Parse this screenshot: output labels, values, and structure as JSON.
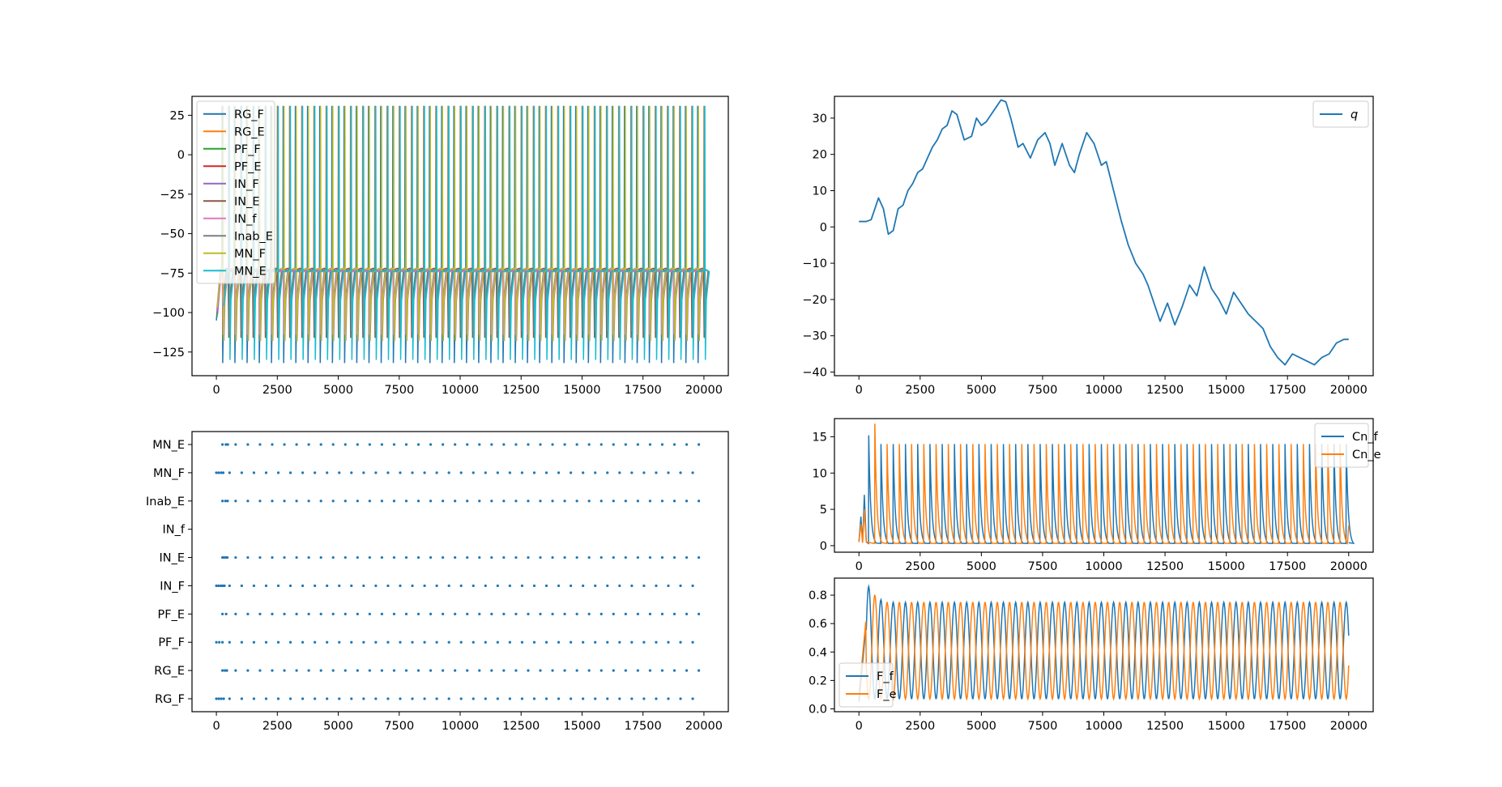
{
  "colors": {
    "tab10": [
      "#1f77b4",
      "#ff7f0e",
      "#2ca02c",
      "#d62728",
      "#9467bd",
      "#8c564b",
      "#e377c2",
      "#7f7f7f",
      "#bcbd22",
      "#17becf"
    ],
    "axes": "#000000",
    "legend_border": "#cccccc"
  },
  "chart_data": [
    {
      "id": "voltage",
      "type": "line",
      "xlim": [
        -1000,
        21000
      ],
      "ylim": [
        -140,
        37
      ],
      "xticks": [
        0,
        2500,
        5000,
        7500,
        10000,
        12500,
        15000,
        17500,
        20000
      ],
      "yticks": [
        25,
        0,
        -25,
        -50,
        -75,
        -100,
        -125
      ],
      "xtick_labels": [
        "0",
        "2500",
        "5000",
        "7500",
        "10000",
        "12500",
        "15000",
        "17500",
        "20000"
      ],
      "ytick_labels": [
        "25",
        "0",
        "−25",
        "−50",
        "−75",
        "−100",
        "−125"
      ],
      "legend_placement": "upper left",
      "grid": false,
      "signal": {
        "t_start": 0,
        "t_end": 20000,
        "period": 500,
        "rest": -72,
        "spike_peak": 31,
        "trough_E": -118,
        "trough_F": -132
      },
      "series": [
        {
          "name": "RG_F",
          "color_index": 0
        },
        {
          "name": "RG_E",
          "color_index": 1
        },
        {
          "name": "PF_F",
          "color_index": 2
        },
        {
          "name": "PF_E",
          "color_index": 3
        },
        {
          "name": "IN_F",
          "color_index": 4
        },
        {
          "name": "IN_E",
          "color_index": 5
        },
        {
          "name": "IN_f",
          "color_index": 6
        },
        {
          "name": "Inab_E",
          "color_index": 7
        },
        {
          "name": "MN_F",
          "color_index": 8
        },
        {
          "name": "MN_E",
          "color_index": 9
        }
      ]
    },
    {
      "id": "q",
      "type": "line",
      "xlim": [
        -1000,
        21000
      ],
      "ylim": [
        -41,
        36
      ],
      "xticks": [
        0,
        2500,
        5000,
        7500,
        10000,
        12500,
        15000,
        17500,
        20000
      ],
      "yticks": [
        30,
        20,
        10,
        0,
        -10,
        -20,
        -30,
        -40
      ],
      "xtick_labels": [
        "0",
        "2500",
        "5000",
        "7500",
        "10000",
        "12500",
        "15000",
        "17500",
        "20000"
      ],
      "ytick_labels": [
        "30",
        "20",
        "10",
        "0",
        "−10",
        "−20",
        "−30",
        "−40"
      ],
      "legend_placement": "upper right",
      "grid": false,
      "series": [
        {
          "name": "q",
          "color_index": 0,
          "x": [
            0,
            300,
            500,
            800,
            1000,
            1200,
            1400,
            1600,
            1800,
            2000,
            2200,
            2400,
            2600,
            2800,
            3000,
            3200,
            3400,
            3600,
            3800,
            4000,
            4300,
            4600,
            4800,
            5000,
            5200,
            5400,
            5600,
            5800,
            6000,
            6200,
            6500,
            6700,
            7000,
            7300,
            7600,
            7800,
            8000,
            8300,
            8600,
            8800,
            9000,
            9300,
            9600,
            9900,
            10100,
            10400,
            10700,
            11000,
            11300,
            11600,
            11800,
            12000,
            12300,
            12600,
            12900,
            13200,
            13500,
            13800,
            14100,
            14400,
            14700,
            15000,
            15300,
            15600,
            15900,
            16200,
            16500,
            16800,
            17100,
            17400,
            17700,
            18000,
            18300,
            18600,
            18900,
            19200,
            19500,
            19800,
            20000
          ],
          "y": [
            1.5,
            1.5,
            2,
            8,
            5,
            -2,
            -1,
            5,
            6,
            10,
            12,
            15,
            16,
            19,
            22,
            24,
            27,
            28,
            32,
            31,
            24,
            25,
            30,
            28,
            29,
            31,
            33,
            35,
            34.5,
            30,
            22,
            23,
            19,
            24,
            26,
            23,
            17,
            23,
            17,
            15,
            20,
            26,
            23,
            17,
            18,
            10,
            2,
            -5,
            -10,
            -13,
            -16,
            -20,
            -26,
            -21,
            -27,
            -22,
            -16,
            -19,
            -11,
            -17,
            -20,
            -24,
            -18,
            -21,
            -24,
            -26,
            -28,
            -33,
            -36,
            -38,
            -35,
            -36,
            -37,
            -38,
            -36,
            -35,
            -32,
            -31,
            -31
          ]
        }
      ]
    },
    {
      "id": "raster",
      "type": "scatter",
      "xlim": [
        -1000,
        21000
      ],
      "xticks": [
        0,
        2500,
        5000,
        7500,
        10000,
        12500,
        15000,
        17500,
        20000
      ],
      "xtick_labels": [
        "0",
        "2500",
        "5000",
        "7500",
        "10000",
        "12500",
        "15000",
        "17500",
        "20000"
      ],
      "categories": [
        "RG_F",
        "RG_E",
        "PF_F",
        "PF_E",
        "IN_F",
        "IN_E",
        "IN_f",
        "Inab_E",
        "MN_F",
        "MN_E"
      ],
      "grid": false,
      "rows": [
        {
          "label": "RG_F",
          "onset": 40,
          "period": 500,
          "early": [
            0,
            100,
            200,
            300
          ],
          "end": 19900
        },
        {
          "label": "RG_E",
          "onset": 290,
          "period": 500,
          "early": [
            0,
            100,
            180
          ],
          "end": 20100
        },
        {
          "label": "PF_F",
          "onset": 40,
          "period": 500,
          "early": [
            0,
            120,
            250
          ],
          "end": 19900
        },
        {
          "label": "PF_E",
          "onset": 290,
          "period": 500,
          "early": [
            0,
            150
          ],
          "end": 20100
        },
        {
          "label": "IN_F",
          "onset": 40,
          "period": 500,
          "early": [
            0,
            90,
            180,
            260,
            330
          ],
          "end": 19900
        },
        {
          "label": "IN_E",
          "onset": 290,
          "period": 500,
          "early": [
            0,
            60,
            140,
            200
          ],
          "end": 20100
        },
        {
          "label": "IN_f",
          "onset": null,
          "period": null,
          "early": [],
          "end": null
        },
        {
          "label": "Inab_E",
          "onset": 290,
          "period": 500,
          "early": [
            0,
            120,
            210
          ],
          "end": 20100
        },
        {
          "label": "MN_F",
          "onset": 40,
          "period": 500,
          "early": [
            0,
            100,
            200,
            280
          ],
          "end": 19900
        },
        {
          "label": "MN_E",
          "onset": 290,
          "period": 500,
          "early": [
            0,
            140,
            220
          ],
          "end": 20100
        }
      ]
    },
    {
      "id": "cn",
      "type": "line",
      "xlim": [
        -1000,
        21000
      ],
      "ylim": [
        -0.9,
        17.5
      ],
      "xticks": [
        0,
        2500,
        5000,
        7500,
        10000,
        12500,
        15000,
        17500,
        20000
      ],
      "yticks": [
        15,
        10,
        5,
        0
      ],
      "xtick_labels": [
        "0",
        "2500",
        "5000",
        "7500",
        "10000",
        "12500",
        "15000",
        "17500",
        "20000"
      ],
      "ytick_labels": [
        "15",
        "10",
        "5",
        "0"
      ],
      "legend_placement": "upper right",
      "grid": false,
      "signal": {
        "period": 500,
        "peak": 14,
        "f_onset": 400,
        "e_onset": 650,
        "decay": 80,
        "first_peak_f": 15.2,
        "first_peak_e": 16.8
      },
      "series": [
        {
          "name": "Cn_f",
          "color_index": 0
        },
        {
          "name": "Cn_e",
          "color_index": 1
        }
      ]
    },
    {
      "id": "force",
      "type": "line",
      "xlim": [
        -1000,
        21000
      ],
      "ylim": [
        -0.02,
        0.92
      ],
      "xticks": [
        0,
        2500,
        5000,
        7500,
        10000,
        12500,
        15000,
        17500,
        20000
      ],
      "yticks": [
        0.8,
        0.6,
        0.4,
        0.2,
        0.0
      ],
      "xtick_labels": [
        "0",
        "2500",
        "5000",
        "7500",
        "10000",
        "12500",
        "15000",
        "17500",
        "20000"
      ],
      "ytick_labels": [
        "0.8",
        "0.6",
        "0.4",
        "0.2",
        "0.0"
      ],
      "legend_placement": "lower left",
      "grid": false,
      "signal": {
        "period": 500,
        "min": 0.07,
        "max": 0.75,
        "first_peak_f": 0.88,
        "first_peak_e": 0.85
      },
      "series": [
        {
          "name": "F_f",
          "color_index": 0
        },
        {
          "name": "F_e",
          "color_index": 1
        }
      ]
    }
  ]
}
